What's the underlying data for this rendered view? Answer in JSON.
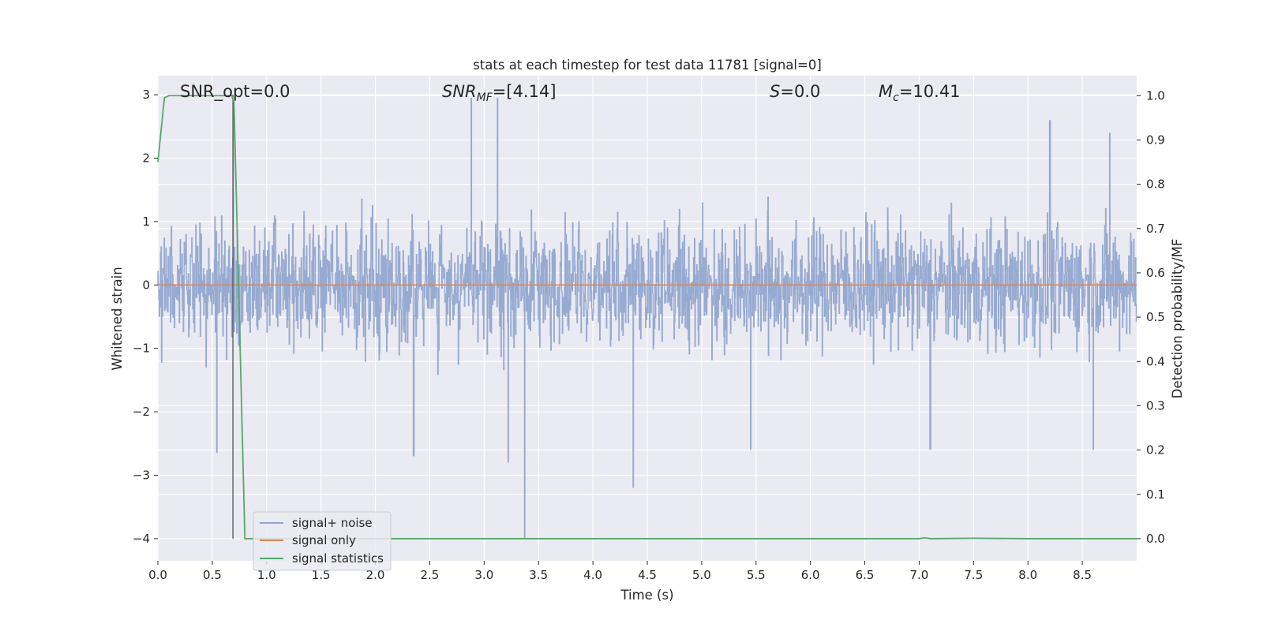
{
  "chart_data": {
    "type": "line",
    "title": "stats at each timestep for test data 11781 [signal=0]",
    "xlabel": "Time (s)",
    "ylabel": "Whitened strain",
    "y2label": "Detection probability/MF",
    "xlim": [
      0.0,
      9.0
    ],
    "ylim": [
      -4.35,
      3.3
    ],
    "y2lim": [
      -0.05,
      1.045
    ],
    "x_ticks": [
      0.0,
      0.5,
      1.0,
      1.5,
      2.0,
      2.5,
      3.0,
      3.5,
      4.0,
      4.5,
      5.0,
      5.5,
      6.0,
      6.5,
      7.0,
      7.5,
      8.0,
      8.5
    ],
    "x_tick_labels": [
      "0.0",
      "0.5",
      "1.0",
      "1.5",
      "2.0",
      "2.5",
      "3.0",
      "3.5",
      "4.0",
      "4.5",
      "5.0",
      "5.5",
      "6.0",
      "6.5",
      "7.0",
      "7.5",
      "8.0",
      "8.5"
    ],
    "y_ticks": [
      -4,
      -3,
      -2,
      -1,
      0,
      1,
      2,
      3
    ],
    "y_tick_labels": [
      "−4",
      "−3",
      "−2",
      "−1",
      "0",
      "1",
      "2",
      "3"
    ],
    "y2_ticks": [
      0.0,
      0.1,
      0.2,
      0.3,
      0.4,
      0.5,
      0.6,
      0.7,
      0.8,
      0.9,
      1.0
    ],
    "y2_tick_labels": [
      "0.0",
      "0.1",
      "0.2",
      "0.3",
      "0.4",
      "0.5",
      "0.6",
      "0.7",
      "0.8",
      "0.9",
      "1.0"
    ],
    "grid": true,
    "legend_position": "lower-left",
    "annotations": {
      "snr_opt": "SNR_opt=0.0",
      "snr_mf_prefix": "SNR",
      "snr_mf_sub": "MF",
      "snr_mf_suffix": "=[4.14]",
      "s_label": "S",
      "s_value": "=0.0",
      "mc_label": "M",
      "mc_sub": "c",
      "mc_value": "=10.41"
    },
    "vertical_marker_x": 0.69,
    "series": [
      {
        "name": "signal+ noise",
        "color": "#92a6cf",
        "kind": "noise",
        "typical_range": [
          -1.6,
          1.9
        ],
        "notable_peaks": [
          {
            "x": 0.69,
            "y": 2.75
          },
          {
            "x": 2.88,
            "y": 2.95
          },
          {
            "x": 3.12,
            "y": 2.95
          },
          {
            "x": 0.54,
            "y": -2.65
          },
          {
            "x": 2.35,
            "y": -2.7
          },
          {
            "x": 3.22,
            "y": -2.8
          },
          {
            "x": 3.37,
            "y": -4.0
          },
          {
            "x": 4.37,
            "y": -3.2
          },
          {
            "x": 5.45,
            "y": -2.6
          },
          {
            "x": 7.1,
            "y": -2.6
          },
          {
            "x": 8.6,
            "y": -2.6
          },
          {
            "x": 8.75,
            "y": 2.4
          },
          {
            "x": 8.2,
            "y": 2.6
          }
        ]
      },
      {
        "name": "signal only",
        "color": "#dd8452",
        "kind": "constant",
        "y": 0.0
      },
      {
        "name": "signal statistics",
        "color": "#55a868",
        "axis": "right",
        "x": [
          0.0,
          0.06,
          0.1,
          0.2,
          0.4,
          0.6,
          0.68,
          0.7,
          0.8,
          0.85,
          1.5,
          3.0,
          5.0,
          7.0,
          7.05,
          7.1,
          7.5,
          8.0,
          9.0
        ],
        "y": [
          0.85,
          0.995,
          1.0,
          1.0,
          1.0,
          1.0,
          1.0,
          0.985,
          0.0,
          0.0,
          0.0,
          0.0,
          0.0,
          0.0,
          0.002,
          0.0,
          0.001,
          0.0,
          0.0
        ]
      }
    ]
  }
}
